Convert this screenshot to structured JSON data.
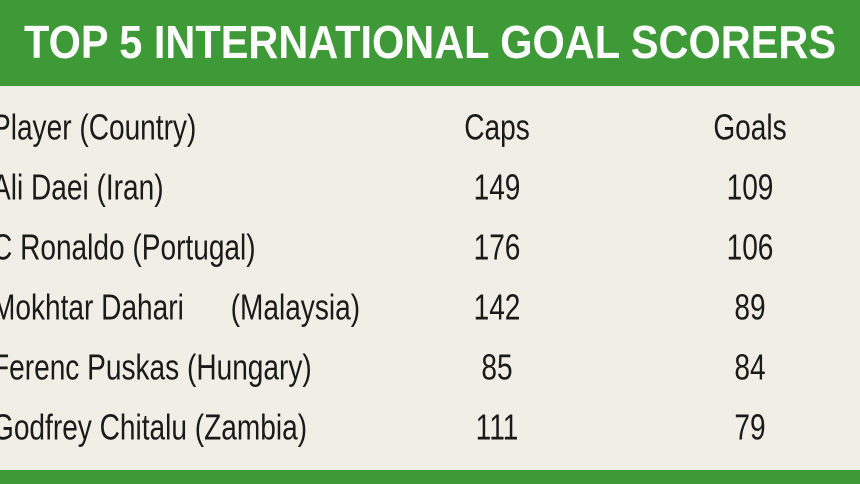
{
  "title": "TOP 5 INTERNATIONAL GOAL SCORERS",
  "table": {
    "header": [
      "Player (Country)",
      "Caps",
      "Goals"
    ],
    "rows": [
      [
        "Ali Daei (Iran)",
        149,
        109
      ],
      [
        "C Ronaldo (Portugal)",
        176,
        106
      ],
      [
        "Mokhtar Dahari      (Malaysia)",
        142,
        89
      ],
      [
        "Ferenc Puskas (Hungary)",
        85,
        84
      ],
      [
        "Godfrey Chitalu (Zambia)",
        111,
        79
      ]
    ]
  }
}
